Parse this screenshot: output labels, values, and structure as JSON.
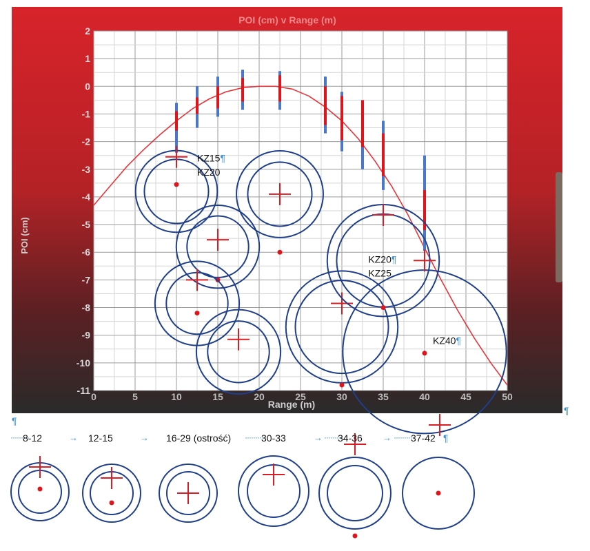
{
  "chart_data": {
    "type": "scatter",
    "title": "POI (cm) v Range (m)",
    "xlabel": "Range (m)",
    "ylabel": "POI (cm)",
    "xlim": [
      0,
      50
    ],
    "ylim": [
      -11,
      2
    ],
    "xticks": [
      "0",
      "5",
      "10",
      "15",
      "20",
      "25",
      "30",
      "35",
      "40",
      "45",
      "50"
    ],
    "yticks": [
      "2",
      "1",
      "0",
      "-1",
      "-2",
      "-3",
      "-4",
      "-5",
      "-6",
      "-7",
      "-8",
      "-9",
      "-10",
      "-11"
    ],
    "grid": true,
    "trajectory_curve": [
      {
        "x": 0,
        "y": -4.3
      },
      {
        "x": 2,
        "y": -3.6
      },
      {
        "x": 4,
        "y": -2.9
      },
      {
        "x": 6,
        "y": -2.3
      },
      {
        "x": 8,
        "y": -1.75
      },
      {
        "x": 10,
        "y": -1.25
      },
      {
        "x": 12,
        "y": -0.8
      },
      {
        "x": 14,
        "y": -0.45
      },
      {
        "x": 16,
        "y": -0.2
      },
      {
        "x": 18,
        "y": -0.05
      },
      {
        "x": 20,
        "y": 0.0
      },
      {
        "x": 22,
        "y": 0.0
      },
      {
        "x": 24,
        "y": -0.1
      },
      {
        "x": 26,
        "y": -0.35
      },
      {
        "x": 28,
        "y": -0.75
      },
      {
        "x": 30,
        "y": -1.25
      },
      {
        "x": 32,
        "y": -1.9
      },
      {
        "x": 34,
        "y": -2.7
      },
      {
        "x": 36,
        "y": -3.6
      },
      {
        "x": 38,
        "y": -4.65
      },
      {
        "x": 40,
        "y": -5.85
      },
      {
        "x": 42,
        "y": -7.0
      },
      {
        "x": 44,
        "y": -8.1
      },
      {
        "x": 46,
        "y": -9.1
      },
      {
        "x": 48,
        "y": -10.0
      },
      {
        "x": 50,
        "y": -10.8
      }
    ],
    "error_bars": [
      {
        "x": 10,
        "blue": [
          -2.4,
          -0.6
        ],
        "red": [
          -1.6,
          -0.9
        ]
      },
      {
        "x": 12.5,
        "blue": [
          -1.5,
          0.0
        ],
        "red": [
          -1.0,
          -0.4
        ]
      },
      {
        "x": 15,
        "blue": [
          -1.1,
          0.35
        ],
        "red": [
          -0.8,
          0.0
        ]
      },
      {
        "x": 18,
        "blue": [
          -0.85,
          0.6
        ],
        "red": [
          -0.55,
          0.3
        ]
      },
      {
        "x": 22.5,
        "blue": [
          -0.85,
          0.55
        ],
        "red": [
          -0.55,
          0.4
        ]
      },
      {
        "x": 28,
        "blue": [
          -1.7,
          0.35
        ],
        "red": [
          -1.4,
          0.0
        ]
      },
      {
        "x": 30,
        "blue": [
          -2.35,
          -0.2
        ],
        "red": [
          -1.95,
          -0.35
        ]
      },
      {
        "x": 32.5,
        "blue": [
          -3.0,
          -1.2
        ],
        "red": [
          -2.2,
          -0.5
        ]
      },
      {
        "x": 35,
        "blue": [
          -3.75,
          -1.25
        ],
        "red": [
          -3.25,
          -1.7
        ]
      },
      {
        "x": 40,
        "blue": [
          -5.95,
          -2.5
        ],
        "red": [
          -5.2,
          -3.75
        ]
      }
    ],
    "target_groups": [
      {
        "x": 10,
        "y": -3.8,
        "r_outer": 3.25,
        "r_inner": 2.55,
        "dot": [
          10,
          -3.55
        ]
      },
      {
        "x": 22.5,
        "y": -3.9,
        "r_outer": 3.45,
        "r_inner": 2.55,
        "cross": [
          22.5,
          -3.9
        ],
        "dot": [
          22.5,
          -6.0
        ]
      },
      {
        "x": 15,
        "y": -5.8,
        "r_outer": 3.3,
        "r_inner": 2.45,
        "cross": [
          15,
          -5.55
        ],
        "dot": [
          15,
          -7.0
        ]
      },
      {
        "x": 12.5,
        "y": -7.85,
        "r_outer": 3.35,
        "r_inner": 2.45,
        "cross": [
          12.5,
          -7.0
        ],
        "dot": [
          12.5,
          -8.2
        ]
      },
      {
        "x": 17.5,
        "y": -9.6,
        "r_outer": 3.35,
        "r_inner": 2.45,
        "cross": [
          17.5,
          -9.15
        ]
      },
      {
        "x": 30,
        "y": -8.7,
        "r_outer": 4.45,
        "r_inner": 3.7,
        "cross": [
          30,
          -7.85
        ],
        "dot": [
          30,
          -10.8
        ]
      },
      {
        "x": 35,
        "y": -6.3,
        "r_outer": 4.45,
        "r_inner": 3.7,
        "cross": [
          35,
          -4.65
        ],
        "dot": [
          35,
          -8.0
        ]
      },
      {
        "x": 40,
        "y": -9.6,
        "r_outer": 6.5,
        "cross": [
          40,
          -6.3
        ],
        "dot": [
          40,
          -9.65
        ]
      }
    ],
    "annotations": [
      {
        "text": "KZ15",
        "x": 12.5,
        "y": -2.6,
        "pilcrow": true
      },
      {
        "text": "KZ20",
        "x": 12.5,
        "y": -3.1,
        "pilcrow": false
      },
      {
        "text": "KZ20",
        "x": 33.2,
        "y": -6.25,
        "pilcrow": true
      },
      {
        "text": "KZ25",
        "x": 33.2,
        "y": -6.75,
        "pilcrow": false
      },
      {
        "text": "KZ40",
        "x": 41.0,
        "y": -9.2,
        "pilcrow": true
      }
    ],
    "loose_marks": [
      {
        "type": "cross",
        "x": 10,
        "y": -2.55
      }
    ]
  },
  "document": {
    "pilcrow": "¶",
    "range_steps": [
      "8-12",
      "12-15",
      "16-29 (ostrość)",
      "30-33",
      "34-36",
      "37-42"
    ],
    "arrow_glyph": "→",
    "dots_glyph": "·········"
  },
  "bottom_targets": [
    {
      "r_outer": 42,
      "r_inner": 31,
      "cross_dx": 0,
      "cross_dy": -36,
      "dot_dx": 0,
      "dot_dy": -4
    },
    {
      "r_outer": 42,
      "r_inner": 31,
      "cross_dx": 0,
      "cross_dy": -22,
      "dot_dx": 0,
      "dot_dy": 14
    },
    {
      "r_outer": 42,
      "r_inner": 31,
      "cross_dx": 0,
      "cross_dy": 0
    },
    {
      "r_outer": 51,
      "r_inner": 38,
      "cross_dx": 0,
      "cross_dy": -24
    },
    {
      "r_outer": 52,
      "r_inner": 40,
      "cross_dx": 0,
      "cross_dy": -71,
      "dot_dx": 0,
      "dot_dy": 62
    },
    {
      "r_outer": 52,
      "dot_dx": 0,
      "dot_dy": 0
    }
  ],
  "colors": {
    "plot_bg_top": "#d8232a",
    "plot_bg_bottom": "#2a2a2a",
    "grid": "#9a9a9a",
    "curve": "#e8343a",
    "bar_blue": "#4a77c8",
    "bar_red": "#e0151c",
    "circle": "#1f3f8a",
    "cross": "#d81e24",
    "dot": "#e0151c",
    "pilcrow": "#3b8fd4"
  }
}
